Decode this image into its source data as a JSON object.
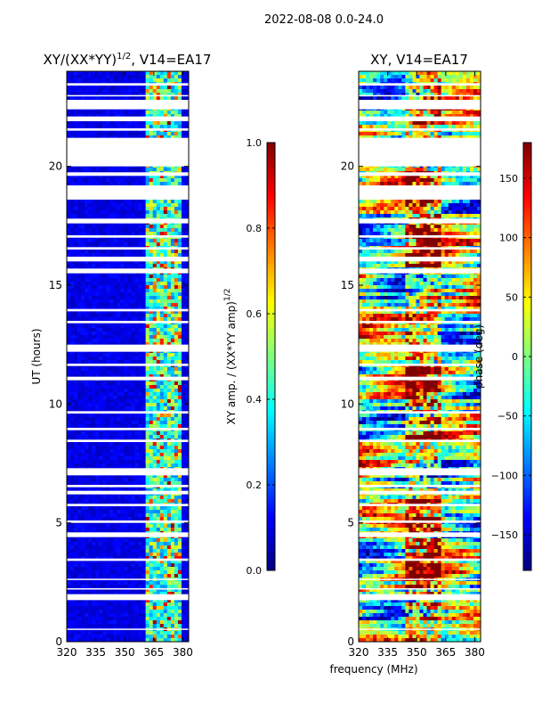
{
  "figure": {
    "suptitle": "2022-08-08 0.0-24.0",
    "shared_xlabel": "frequency (MHz)"
  },
  "colors": {
    "jet": [
      "#00007f",
      "#0000ff",
      "#007fff",
      "#00ffff",
      "#7fff7f",
      "#ffff00",
      "#ff7f00",
      "#ff0000",
      "#7f0000"
    ],
    "gap": "#ffffff"
  },
  "chart_data": [
    {
      "type": "heatmap",
      "title": "XY/(XX*YY)^{1/2}, V14=EA17",
      "title_main": "XY/(XX*YY)",
      "title_sup": "1/2",
      "title_tail": ", V14=EA17",
      "xlabel": "",
      "ylabel": "UT (hours)",
      "xlim": [
        320,
        383
      ],
      "ylim": [
        0,
        24
      ],
      "xticks": [
        320,
        335,
        350,
        365,
        380
      ],
      "yticks": [
        0,
        5,
        10,
        15,
        20
      ],
      "bright_band_MHz": [
        360,
        380
      ],
      "gaps_hours": [
        [
          0.5,
          0.55
        ],
        [
          1.75,
          2.0
        ],
        [
          2.2,
          2.25
        ],
        [
          2.6,
          2.65
        ],
        [
          3.4,
          3.5
        ],
        [
          4.4,
          4.6
        ],
        [
          5.0,
          5.1
        ],
        [
          5.7,
          5.8
        ],
        [
          6.2,
          6.35
        ],
        [
          6.5,
          6.6
        ],
        [
          7.0,
          7.3
        ],
        [
          8.4,
          8.5
        ],
        [
          8.9,
          9.0
        ],
        [
          9.6,
          9.7
        ],
        [
          11.0,
          11.15
        ],
        [
          11.6,
          11.7
        ],
        [
          12.2,
          12.5
        ],
        [
          13.4,
          13.5
        ],
        [
          13.9,
          14.0
        ],
        [
          15.5,
          15.7
        ],
        [
          16.0,
          16.2
        ],
        [
          16.5,
          16.6
        ],
        [
          17.0,
          17.1
        ],
        [
          17.6,
          17.8
        ],
        [
          18.6,
          19.2
        ],
        [
          19.6,
          19.75
        ],
        [
          20.0,
          21.2
        ],
        [
          21.5,
          21.6
        ],
        [
          21.9,
          22.1
        ],
        [
          22.4,
          22.8
        ],
        [
          22.95,
          23.0
        ],
        [
          23.4,
          23.5
        ]
      ],
      "colorbar": {
        "label": "XY amp. / (XX*YY amp)^{1/2}",
        "label_main": "XY amp. / (XX*YY amp)",
        "label_sup": "1/2",
        "range": [
          0.0,
          1.0
        ],
        "ticks": [
          "0.0",
          "0.2",
          "0.4",
          "0.6",
          "0.8",
          "1.0"
        ],
        "tick_values": [
          0.0,
          0.2,
          0.4,
          0.6,
          0.8,
          1.0
        ]
      }
    },
    {
      "type": "heatmap",
      "title": "XY, V14=EA17",
      "xlabel": "frequency (MHz)",
      "ylabel": "",
      "xlim": [
        320,
        383
      ],
      "ylim": [
        0,
        24
      ],
      "xticks": [
        320,
        335,
        350,
        365,
        380
      ],
      "yticks": [
        0,
        5,
        10,
        15,
        20
      ],
      "gaps_hours": [
        [
          0.5,
          0.55
        ],
        [
          1.75,
          2.0
        ],
        [
          2.2,
          2.25
        ],
        [
          2.6,
          2.65
        ],
        [
          3.4,
          3.5
        ],
        [
          4.4,
          4.6
        ],
        [
          5.0,
          5.1
        ],
        [
          5.7,
          5.8
        ],
        [
          6.2,
          6.35
        ],
        [
          6.5,
          6.6
        ],
        [
          7.0,
          7.3
        ],
        [
          8.4,
          8.5
        ],
        [
          8.9,
          9.0
        ],
        [
          9.6,
          9.7
        ],
        [
          11.0,
          11.15
        ],
        [
          11.6,
          11.7
        ],
        [
          12.2,
          12.5
        ],
        [
          13.4,
          13.5
        ],
        [
          13.9,
          14.0
        ],
        [
          15.5,
          15.7
        ],
        [
          16.0,
          16.2
        ],
        [
          16.5,
          16.6
        ],
        [
          17.0,
          17.1
        ],
        [
          17.6,
          17.8
        ],
        [
          18.6,
          19.2
        ],
        [
          19.6,
          19.75
        ],
        [
          20.0,
          21.2
        ],
        [
          21.5,
          21.6
        ],
        [
          21.9,
          22.1
        ],
        [
          22.4,
          22.8
        ],
        [
          22.95,
          23.0
        ],
        [
          23.4,
          23.5
        ]
      ],
      "colorbar": {
        "label": "phase (deg)",
        "range": [
          -180,
          180
        ],
        "ticks": [
          "150",
          "100",
          "50",
          "0",
          "−50",
          "−100",
          "−150"
        ],
        "tick_values": [
          150,
          100,
          50,
          0,
          -50,
          -100,
          -150
        ]
      }
    }
  ]
}
